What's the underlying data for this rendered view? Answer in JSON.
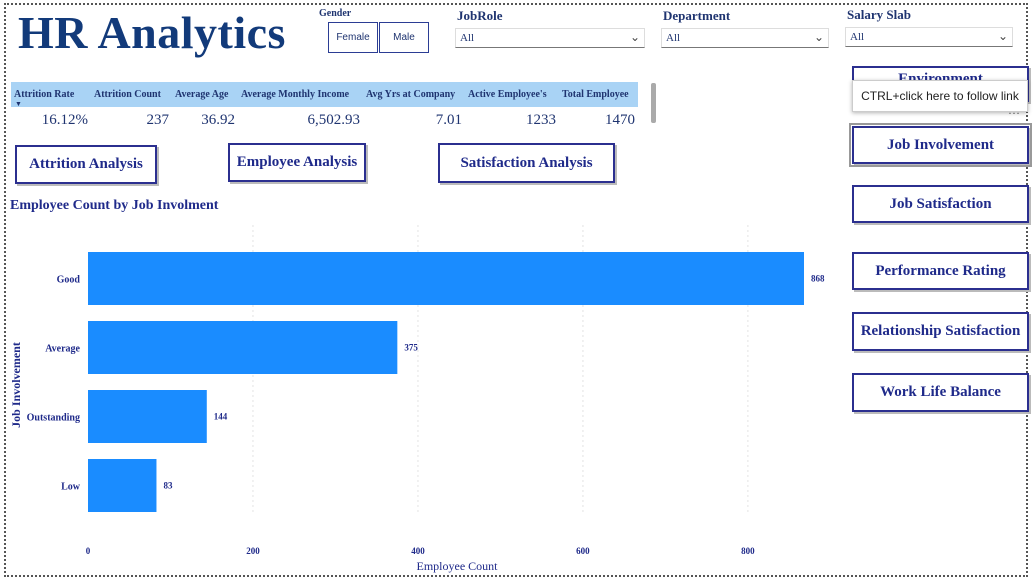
{
  "title": "HR Analytics",
  "filters": {
    "gender": {
      "label": "Gender",
      "options": [
        "Female",
        "Male"
      ]
    },
    "jobrole": {
      "label": "JobRole",
      "value": "All"
    },
    "department": {
      "label": "Department",
      "value": "All"
    },
    "salary": {
      "label": "Salary Slab",
      "value": "All"
    }
  },
  "kpi": {
    "headers": [
      "Attrition Rate",
      "Attrition Count",
      "Average Age",
      "Average Monthly Income",
      "Avg Yrs at Company",
      "Active Employee's",
      "Total Employee"
    ],
    "values": [
      "16.12%",
      "237",
      "36.92",
      "6,502.93",
      "7.01",
      "1233",
      "1470"
    ]
  },
  "nav": {
    "attrition": "Attrition Analysis",
    "employee": "Employee Analysis",
    "satisfaction": "Satisfaction Analysis"
  },
  "right_nav": {
    "environment": "Environment",
    "job_involvement": "Job Involvement",
    "job_satisfaction": "Job Satisfaction",
    "performance": "Performance Rating",
    "relationship": "Relationship Satisfaction",
    "work_life": "Work Life Balance"
  },
  "tooltip": "CTRL+click here to follow link",
  "more_icon": "ellipsis-icon",
  "colors": {
    "bar": "#1a8cff",
    "accent": "#1f2a8a",
    "kpi_header": "#a9d3f5"
  },
  "chart_data": {
    "type": "bar",
    "orientation": "horizontal",
    "title": "Employee Count by Job Involment",
    "xlabel": "Employee Count",
    "ylabel": "Job Involvement",
    "categories": [
      "Good",
      "Average",
      "Outstanding",
      "Low"
    ],
    "values": [
      868,
      375,
      144,
      83
    ],
    "xticks": [
      0,
      200,
      400,
      600,
      800
    ],
    "xlim": [
      0,
      870
    ],
    "grid": true
  }
}
